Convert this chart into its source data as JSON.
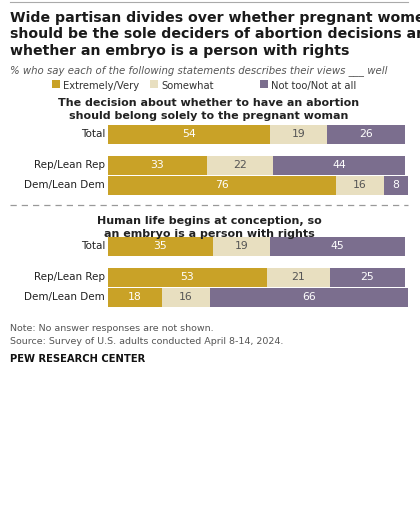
{
  "title_lines": [
    "Wide partisan divides over whether pregnant women",
    "should be the sole deciders of abortion decisions and",
    "whether an embryo is a person with rights"
  ],
  "subtitle": "% who say each of the following statements describes their views ___ well",
  "legend_labels": [
    "Extremely/Very",
    "Somewhat",
    "Not too/Not at all"
  ],
  "colors": [
    "#C9A227",
    "#E8DFC0",
    "#7B6E8E"
  ],
  "section1_title_lines": [
    "The decision about whether to have an abortion",
    "should belong solely to the pregnant woman"
  ],
  "section2_title_lines": [
    "Human life begins at conception, so",
    "an embryo is a person with rights"
  ],
  "section1_rows": [
    {
      "label": "Total",
      "values": [
        54,
        19,
        26
      ]
    },
    {
      "label": "Rep/Lean Rep",
      "values": [
        33,
        22,
        44
      ]
    },
    {
      "label": "Dem/Lean Dem",
      "values": [
        76,
        16,
        8
      ]
    }
  ],
  "section2_rows": [
    {
      "label": "Total",
      "values": [
        35,
        19,
        45
      ]
    },
    {
      "label": "Rep/Lean Rep",
      "values": [
        53,
        21,
        25
      ]
    },
    {
      "label": "Dem/Lean Dem",
      "values": [
        18,
        16,
        66
      ]
    }
  ],
  "note_lines": [
    "Note: No answer responses are not shown.",
    "Source: Survey of U.S. adults conducted April 8-14, 2024."
  ],
  "source_bold": "PEW RESEARCH CENTER",
  "background_color": "#FFFFFF",
  "bar_text_color_dark": "#333333",
  "bar_text_color_light": "#FFFFFF"
}
